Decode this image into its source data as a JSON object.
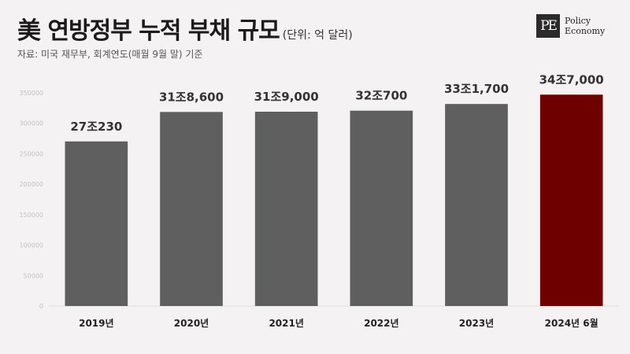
{
  "header": {
    "title": "美 연방정부 누적 부채 규모",
    "unit": "(단위: 억 달러)",
    "source": "자료: 미국 재무부, 회계연도(매월 9월 말) 기준"
  },
  "logo": {
    "mark": "PE",
    "line1": "Policy",
    "line2": "Economy"
  },
  "colors": {
    "bar": "#5f5f5f",
    "highlight": "#6e0000",
    "background": "#f4f2f2"
  },
  "chart_data": {
    "type": "bar",
    "categories": [
      "2019년",
      "2020년",
      "2021년",
      "2022년",
      "2023년",
      "2024년 6월"
    ],
    "values": [
      270230,
      318600,
      319000,
      320700,
      331700,
      347000
    ],
    "data_labels": [
      "27조230",
      "31조8,600",
      "31조9,000",
      "32조700",
      "33조1,700",
      "34조7,000"
    ],
    "highlight_index": 5,
    "ylim": [
      0,
      350000
    ],
    "yticks": [
      0,
      50000,
      100000,
      150000,
      200000,
      250000,
      300000,
      350000
    ],
    "grid": false,
    "title": "美 연방정부 누적 부채 규모",
    "xlabel": "",
    "ylabel": ""
  }
}
